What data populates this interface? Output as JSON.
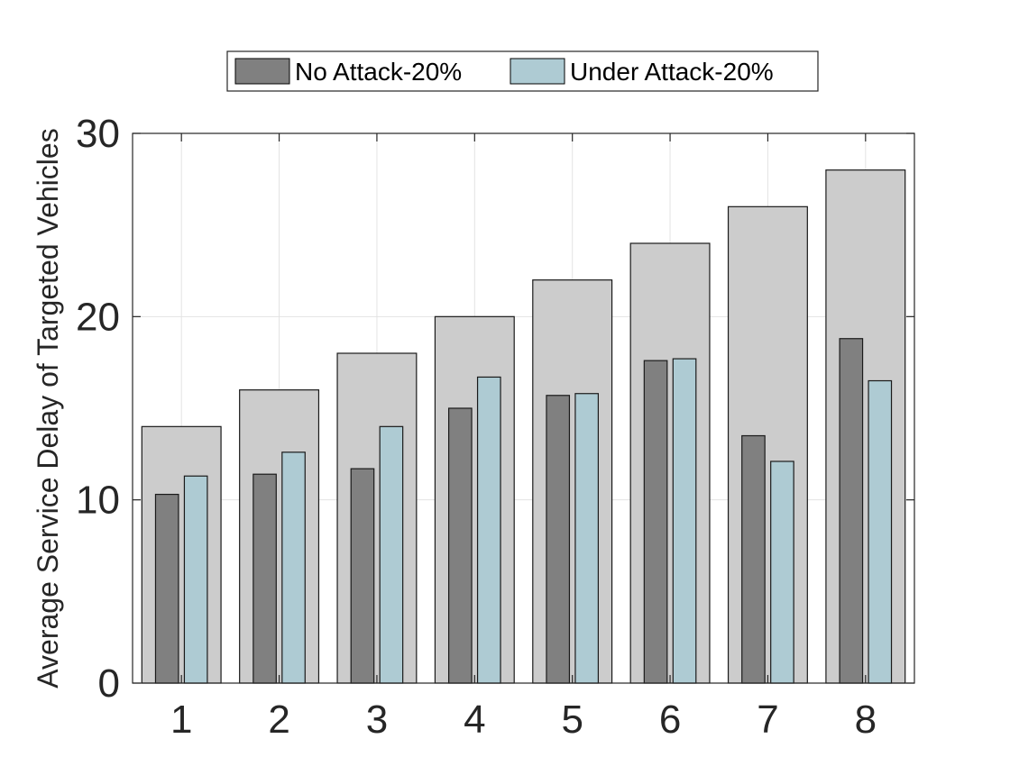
{
  "chart_data": {
    "type": "bar",
    "categories": [
      "1",
      "2",
      "3",
      "4",
      "5",
      "6",
      "7",
      "8"
    ],
    "ylabel": "Average Service Delay of Targeted Vehicles",
    "xlabel": "",
    "ylim": [
      0,
      30
    ],
    "yticks": [
      0,
      10,
      20,
      30
    ],
    "grid": true,
    "legend_position": "top-center",
    "background_bars": {
      "values": [
        14,
        16,
        18,
        20,
        22,
        24,
        26,
        28
      ],
      "color": "#cccccc"
    },
    "series": [
      {
        "name": "No Attack-20%",
        "values": [
          10.3,
          11.4,
          11.7,
          15.0,
          15.7,
          17.6,
          13.5,
          18.8
        ],
        "color": "#808080"
      },
      {
        "name": "Under Attack-20%",
        "values": [
          11.3,
          12.6,
          14.0,
          16.7,
          15.8,
          17.7,
          12.1,
          16.5
        ],
        "color": "#aecbd3"
      }
    ]
  }
}
